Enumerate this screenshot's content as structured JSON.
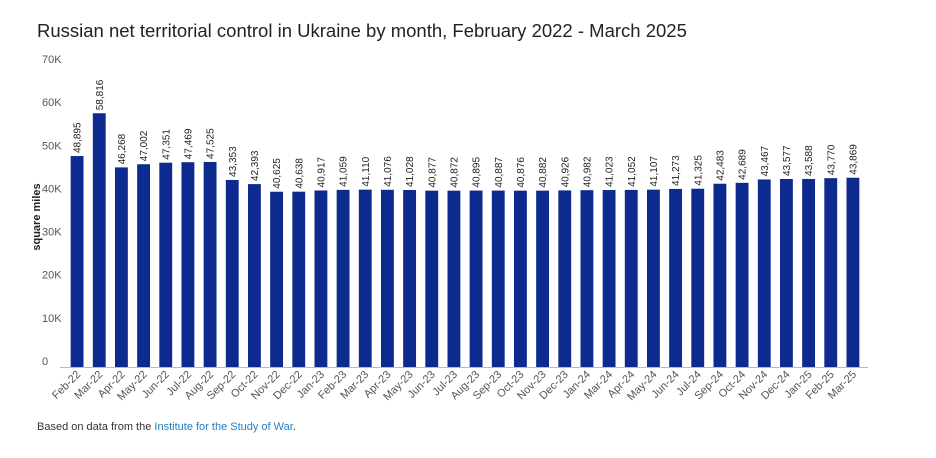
{
  "chart_data": {
    "type": "bar",
    "title": "Russian net territorial control in Ukraine by month, February 2022 - March 2025",
    "ylabel": "square miles",
    "xlabel": "",
    "ylim": [
      0,
      70000
    ],
    "yticks": [
      {
        "value": 0,
        "label": "0"
      },
      {
        "value": 10000,
        "label": "10K"
      },
      {
        "value": 20000,
        "label": "20K"
      },
      {
        "value": 30000,
        "label": "30K"
      },
      {
        "value": 40000,
        "label": "40K"
      },
      {
        "value": 50000,
        "label": "50K"
      },
      {
        "value": 60000,
        "label": "60K"
      },
      {
        "value": 70000,
        "label": "70K"
      }
    ],
    "grid": false,
    "bar_color": "#0d2a8f",
    "categories": [
      "Feb-22",
      "Mar-22",
      "Apr-22",
      "May-22",
      "Jun-22",
      "Jul-22",
      "Aug-22",
      "Sep-22",
      "Oct-22",
      "Nov-22",
      "Dec-22",
      "Jan-23",
      "Feb-23",
      "Mar-23",
      "Apr-23",
      "May-23",
      "Jun-23",
      "Jul-23",
      "Aug-23",
      "Sep-23",
      "Oct-23",
      "Nov-23",
      "Dec-23",
      "Jan-24",
      "Mar-24",
      "Apr-24",
      "May-24",
      "Jun-24",
      "Jul-24",
      "Sep-24",
      "Oct-24",
      "Nov-24",
      "Dec-24",
      "Jan-25",
      "Feb-25",
      "Mar-25"
    ],
    "values": [
      48895,
      58816,
      46268,
      47002,
      47351,
      47469,
      47525,
      43353,
      42393,
      40625,
      40638,
      40917,
      41059,
      41110,
      41076,
      41028,
      40877,
      40872,
      40895,
      40887,
      40876,
      40882,
      40926,
      40982,
      41023,
      41052,
      41107,
      41273,
      41325,
      42483,
      42689,
      43467,
      43577,
      43588,
      43770,
      43869
    ],
    "data_labels": [
      "48,895",
      "58,816",
      "46,268",
      "47,002",
      "47,351",
      "47,469",
      "47,525",
      "43,353",
      "42,393",
      "40,625",
      "40,638",
      "40,917",
      "41,059",
      "41,110",
      "41,076",
      "41,028",
      "40,877",
      "40,872",
      "40,895",
      "40,887",
      "40,876",
      "40,882",
      "40,926",
      "40,982",
      "41,023",
      "41,052",
      "41,107",
      "41,273",
      "41,325",
      "42,483",
      "42,689",
      "43,467",
      "43,577",
      "43,588",
      "43,770",
      "43,869"
    ]
  },
  "footer": {
    "prefix": "Based on data from the ",
    "link_text": "Institute for the Study of War",
    "suffix": "."
  }
}
